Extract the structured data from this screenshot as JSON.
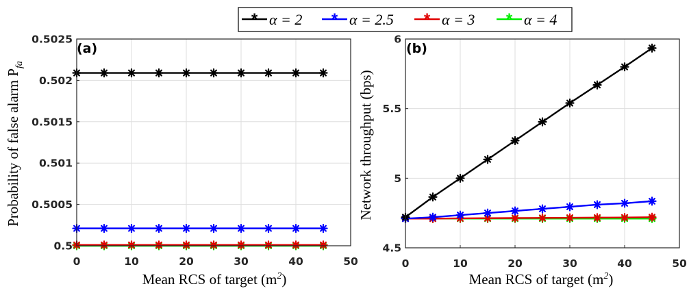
{
  "legend": [
    {
      "label": "α = 2",
      "color": "#000000"
    },
    {
      "label": "α = 2.5",
      "color": "#0000ff"
    },
    {
      "label": "α = 3",
      "color": "#e00000"
    },
    {
      "label": "α = 4",
      "color": "#00ee00"
    }
  ],
  "chart_data": [
    {
      "type": "line",
      "panel": "(a)",
      "ylabel_main": "Probability of false alarm P",
      "ylabel_sub": "fa",
      "xlabel_main": "Mean RCS of target (m",
      "xlabel_sup": "2",
      "xlabel_end": ")",
      "xlim": [
        0,
        50
      ],
      "ylim": [
        0.5,
        0.5025
      ],
      "xticks": [
        0,
        10,
        20,
        30,
        40,
        50
      ],
      "xtick_labels": [
        "0",
        "10",
        "20",
        "30",
        "40",
        "50"
      ],
      "yticks": [
        0.5,
        0.5005,
        0.501,
        0.5015,
        0.502,
        0.5025
      ],
      "ytick_labels": [
        "0.5",
        "0.5005",
        "0.501",
        "0.5015",
        "0.502",
        "0.5025"
      ],
      "grid": true,
      "x": [
        0,
        5,
        10,
        15,
        20,
        25,
        30,
        35,
        40,
        45
      ],
      "series": [
        {
          "name": "α = 4",
          "color": "#00ee00",
          "values": [
            0.5,
            0.5,
            0.5,
            0.5,
            0.5,
            0.5,
            0.5,
            0.5,
            0.5,
            0.5
          ]
        },
        {
          "name": "α = 3",
          "color": "#e00000",
          "values": [
            0.50001,
            0.50001,
            0.50001,
            0.50001,
            0.50001,
            0.50001,
            0.50001,
            0.50001,
            0.50001,
            0.50001
          ]
        },
        {
          "name": "α = 2.5",
          "color": "#0000ff",
          "values": [
            0.50021,
            0.50021,
            0.50021,
            0.50021,
            0.50021,
            0.50021,
            0.50021,
            0.50021,
            0.50021,
            0.50021
          ]
        },
        {
          "name": "α = 2",
          "color": "#000000",
          "values": [
            0.50209,
            0.50209,
            0.50209,
            0.50209,
            0.50209,
            0.50209,
            0.50209,
            0.50209,
            0.50209,
            0.50209
          ]
        }
      ]
    },
    {
      "type": "line",
      "panel": "(b)",
      "ylabel_main": "Network throughput (bps)",
      "xlabel_main": "Mean RCS of target (m",
      "xlabel_sup": "2",
      "xlabel_end": ")",
      "xlim": [
        0,
        50
      ],
      "ylim": [
        4.5,
        6
      ],
      "xticks": [
        0,
        10,
        20,
        30,
        40,
        50
      ],
      "xtick_labels": [
        "0",
        "10",
        "20",
        "30",
        "40",
        "50"
      ],
      "yticks": [
        4.5,
        5,
        5.5,
        6
      ],
      "ytick_labels": [
        "4.5",
        "5",
        "5.5",
        "6"
      ],
      "grid": true,
      "x": [
        0,
        5,
        10,
        15,
        20,
        25,
        30,
        35,
        40,
        45
      ],
      "series": [
        {
          "name": "α = 4",
          "color": "#00ee00",
          "values": [
            4.71,
            4.71,
            4.71,
            4.71,
            4.71,
            4.71,
            4.71,
            4.71,
            4.71,
            4.71
          ]
        },
        {
          "name": "α = 3",
          "color": "#e00000",
          "values": [
            4.71,
            4.71,
            4.712,
            4.713,
            4.714,
            4.715,
            4.716,
            4.717,
            4.718,
            4.72
          ]
        },
        {
          "name": "α = 2.5",
          "color": "#0000ff",
          "values": [
            4.71,
            4.72,
            4.735,
            4.75,
            4.765,
            4.78,
            4.795,
            4.81,
            4.82,
            4.835
          ]
        },
        {
          "name": "α = 2",
          "color": "#000000",
          "values": [
            4.72,
            4.865,
            5.0,
            5.135,
            5.27,
            5.405,
            5.54,
            5.67,
            5.8,
            5.935
          ]
        }
      ]
    }
  ]
}
